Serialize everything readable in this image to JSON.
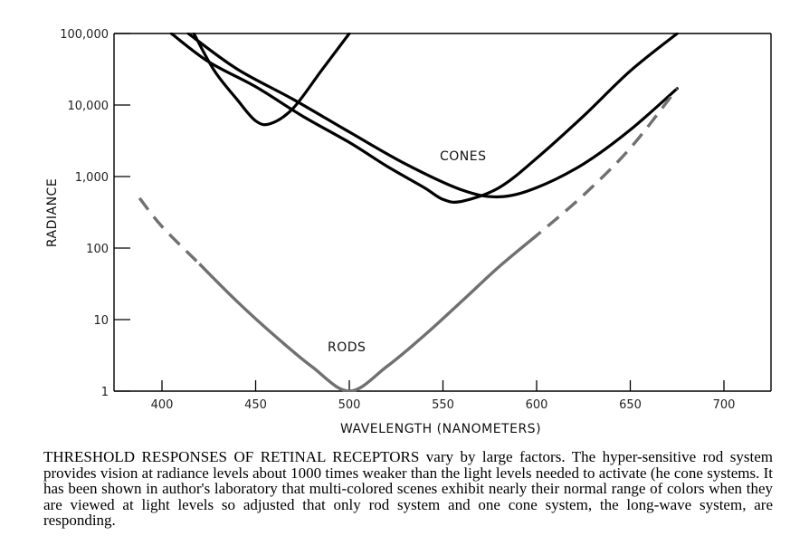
{
  "chart_data": {
    "type": "line",
    "title": "",
    "xlabel": "WAVELENGTH  (NANOMETERS)",
    "ylabel": "RADIANCE",
    "xlim": [
      380,
      720
    ],
    "ylim": [
      1,
      100000
    ],
    "y_scale": "log",
    "x_ticks": [
      400,
      450,
      500,
      550,
      600,
      650,
      700
    ],
    "x_tick_labels": [
      "400",
      "450",
      "500",
      "550",
      "600",
      "650",
      "700"
    ],
    "y_ticks": [
      1,
      10,
      100,
      1000,
      10000,
      100000
    ],
    "y_tick_labels": [
      "1",
      "10",
      "100",
      "1,000",
      "10,000",
      "100,000"
    ],
    "grid": false,
    "annotations": [
      "CONES",
      "RODS"
    ],
    "series": [
      {
        "group": "cones",
        "color": "#000000",
        "style": "solid",
        "x": [
          417,
          428,
          440,
          450,
          458,
          470,
          485,
          500
        ],
        "y": [
          100000,
          30000,
          12000,
          6000,
          5500,
          9000,
          30000,
          100000
        ]
      },
      {
        "group": "cones",
        "color": "#000000",
        "style": "solid",
        "x": [
          405,
          425,
          450,
          475,
          500,
          520,
          540,
          550,
          560,
          580,
          600,
          625,
          650,
          675
        ],
        "y": [
          100000,
          40000,
          18000,
          7000,
          3000,
          1400,
          700,
          480,
          450,
          700,
          1800,
          7000,
          30000,
          100000
        ]
      },
      {
        "group": "cones",
        "color": "#000000",
        "style": "solid",
        "x": [
          414,
          440,
          470,
          500,
          530,
          560,
          580,
          600,
          625,
          650,
          675
        ],
        "y": [
          100000,
          32000,
          12000,
          4200,
          1500,
          650,
          520,
          700,
          1500,
          4500,
          17000
        ]
      },
      {
        "group": "rods",
        "color": "#707070",
        "style": "dashed-solid-dashed",
        "x": [
          388,
          400,
          420,
          440,
          460,
          480,
          500,
          520,
          540,
          560,
          580,
          600,
          625,
          650,
          675
        ],
        "y": [
          500,
          200,
          60,
          18,
          6,
          2.2,
          1,
          2.2,
          6,
          18,
          55,
          150,
          550,
          2500,
          17000
        ],
        "solid_x_range": [
          415,
          600
        ]
      }
    ]
  },
  "caption": {
    "lead": "THRESHOLD RESPONSES OF RETINAL RECEPTORS",
    "body": " vary by large factors. The hyper-sensitive rod system provides vision at radiance levels about 1000 times weaker than the light levels needed to activate (he cone systems. It has been shown in author's laboratory that multi-colored scenes exhibit nearly their normal range of colors when they are viewed at light levels so adjusted that only rod system and one cone system, the long-wave system, are responding."
  }
}
